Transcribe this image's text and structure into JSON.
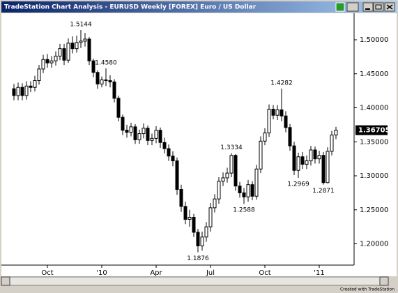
{
  "window": {
    "title": "TradeStation Chart Analysis - EURUSD Weekly [FOREX] Euro / US Dollar",
    "footer": "Created with TradeStation"
  },
  "chart_data": {
    "type": "candlestick",
    "categories": [
      null,
      null,
      null,
      null,
      null,
      null,
      null,
      null,
      "Oct",
      null,
      null,
      null,
      null,
      null,
      null,
      null,
      null,
      null,
      null,
      null,
      null,
      "'10",
      null,
      null,
      null,
      null,
      null,
      null,
      null,
      null,
      null,
      null,
      null,
      null,
      "Apr",
      null,
      null,
      null,
      null,
      null,
      null,
      null,
      null,
      null,
      null,
      null,
      null,
      "Jul",
      null,
      null,
      null,
      null,
      null,
      null,
      null,
      null,
      null,
      null,
      null,
      null,
      "Oct",
      null,
      null,
      null,
      null,
      null,
      null,
      null,
      null,
      null,
      null,
      null,
      null,
      "'11",
      null,
      null,
      null,
      null
    ],
    "open": [
      1.428,
      1.418,
      1.43,
      1.418,
      1.432,
      1.43,
      1.44,
      1.457,
      1.471,
      1.466,
      1.469,
      1.476,
      1.487,
      1.47,
      1.495,
      1.487,
      1.496,
      1.498,
      1.501,
      1.469,
      1.452,
      1.435,
      1.441,
      1.44,
      1.438,
      1.414,
      1.386,
      1.367,
      1.364,
      1.372,
      1.353,
      1.362,
      1.37,
      1.352,
      1.355,
      1.367,
      1.349,
      1.34,
      1.329,
      1.322,
      1.28,
      1.255,
      1.236,
      1.239,
      1.217,
      1.197,
      1.21,
      1.225,
      1.253,
      1.266,
      1.292,
      1.297,
      1.304,
      1.33,
      1.285,
      1.275,
      1.269,
      1.287,
      1.27,
      1.31,
      1.351,
      1.363,
      1.398,
      1.389,
      1.397,
      1.388,
      1.371,
      1.344,
      1.308,
      1.328,
      1.317,
      1.322,
      1.338,
      1.325,
      1.33,
      1.29,
      1.336,
      1.36
    ],
    "high": [
      1.435,
      1.437,
      1.436,
      1.439,
      1.439,
      1.447,
      1.463,
      1.478,
      1.479,
      1.476,
      1.483,
      1.494,
      1.494,
      1.502,
      1.505,
      1.506,
      1.5144,
      1.51,
      1.504,
      1.472,
      1.455,
      1.446,
      1.458,
      1.448,
      1.442,
      1.418,
      1.39,
      1.375,
      1.378,
      1.376,
      1.368,
      1.377,
      1.374,
      1.362,
      1.373,
      1.371,
      1.356,
      1.346,
      1.336,
      1.327,
      1.287,
      1.262,
      1.25,
      1.244,
      1.222,
      1.218,
      1.232,
      1.26,
      1.273,
      1.298,
      1.305,
      1.312,
      1.3334,
      1.332,
      1.291,
      1.282,
      1.294,
      1.292,
      1.316,
      1.358,
      1.37,
      1.405,
      1.404,
      1.404,
      1.4282,
      1.395,
      1.376,
      1.35,
      1.334,
      1.335,
      1.33,
      1.344,
      1.343,
      1.337,
      1.335,
      1.342,
      1.366,
      1.372
    ],
    "low": [
      1.411,
      1.411,
      1.411,
      1.412,
      1.423,
      1.424,
      1.434,
      1.451,
      1.459,
      1.459,
      1.462,
      1.47,
      1.463,
      1.466,
      1.48,
      1.481,
      1.488,
      1.49,
      1.463,
      1.445,
      1.428,
      1.43,
      1.432,
      1.43,
      1.408,
      1.38,
      1.36,
      1.356,
      1.358,
      1.347,
      1.347,
      1.355,
      1.345,
      1.345,
      1.348,
      1.341,
      1.333,
      1.322,
      1.314,
      1.272,
      1.247,
      1.229,
      1.225,
      1.21,
      1.1876,
      1.19,
      1.203,
      1.218,
      1.246,
      1.259,
      1.285,
      1.29,
      1.298,
      1.278,
      1.268,
      1.2588,
      1.262,
      1.264,
      1.265,
      1.304,
      1.345,
      1.357,
      1.383,
      1.382,
      1.38,
      1.364,
      1.337,
      1.301,
      1.2969,
      1.31,
      1.31,
      1.315,
      1.318,
      1.318,
      1.2871,
      1.289,
      1.33,
      1.354
    ],
    "close": [
      1.418,
      1.43,
      1.418,
      1.432,
      1.43,
      1.44,
      1.457,
      1.471,
      1.466,
      1.469,
      1.476,
      1.487,
      1.47,
      1.495,
      1.487,
      1.496,
      1.498,
      1.501,
      1.469,
      1.452,
      1.435,
      1.441,
      1.44,
      1.438,
      1.414,
      1.386,
      1.367,
      1.364,
      1.372,
      1.353,
      1.362,
      1.37,
      1.352,
      1.355,
      1.367,
      1.349,
      1.34,
      1.329,
      1.322,
      1.28,
      1.255,
      1.236,
      1.239,
      1.217,
      1.197,
      1.21,
      1.225,
      1.253,
      1.266,
      1.292,
      1.297,
      1.304,
      1.33,
      1.285,
      1.275,
      1.269,
      1.287,
      1.27,
      1.31,
      1.351,
      1.363,
      1.398,
      1.389,
      1.397,
      1.388,
      1.371,
      1.344,
      1.308,
      1.328,
      1.317,
      1.322,
      1.338,
      1.325,
      1.33,
      1.29,
      1.336,
      1.36,
      1.36705
    ],
    "up_color": "#ffffff",
    "down_color": "#000000",
    "outline_color": "#000000",
    "ylim": [
      1.171,
      1.53
    ],
    "yticks": [
      {
        "value": 1.2,
        "label": "1.20000"
      },
      {
        "value": 1.25,
        "label": "1.25000"
      },
      {
        "value": 1.3,
        "label": "1.30000"
      },
      {
        "value": 1.35,
        "label": "1.35000"
      },
      {
        "value": 1.4,
        "label": "1.40000"
      },
      {
        "value": 1.45,
        "label": "1.45000"
      },
      {
        "value": 1.5,
        "label": "1.50000"
      }
    ],
    "last_price": {
      "value": 1.36705,
      "label": "1.36705"
    },
    "annotations": [
      {
        "value": 1.5144,
        "label": "1.5144"
      },
      {
        "value": 1.458,
        "label": "1.4580"
      },
      {
        "value": 1.1876,
        "label": "1.1876"
      },
      {
        "value": 1.3334,
        "label": "1.3334"
      },
      {
        "value": 1.2588,
        "label": "1.2588"
      },
      {
        "value": 1.4282,
        "label": "1.4282"
      },
      {
        "value": 1.2969,
        "label": "1.2969"
      },
      {
        "value": 1.2871,
        "label": "1.2871"
      }
    ]
  }
}
